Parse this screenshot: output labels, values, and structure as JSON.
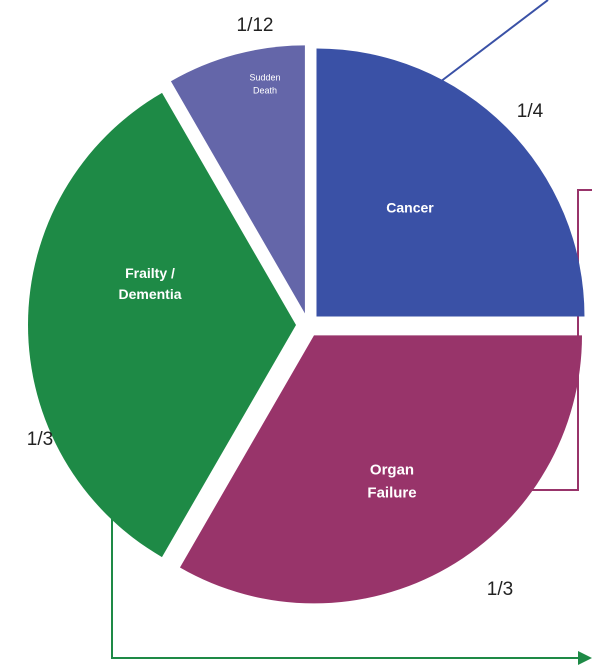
{
  "chart_data": {
    "type": "pie",
    "categories": [
      "Cancer",
      "Organ Failure",
      "Frailty / Dementia",
      "Sudden Death"
    ],
    "values": [
      0.25,
      0.3333,
      0.3333,
      0.0833
    ],
    "value_labels": [
      "1/4",
      "1/3",
      "1/3",
      "1/12"
    ],
    "colors": [
      "#3a51a6",
      "#98346a",
      "#1e8a46",
      "#6466a9"
    ]
  }
}
